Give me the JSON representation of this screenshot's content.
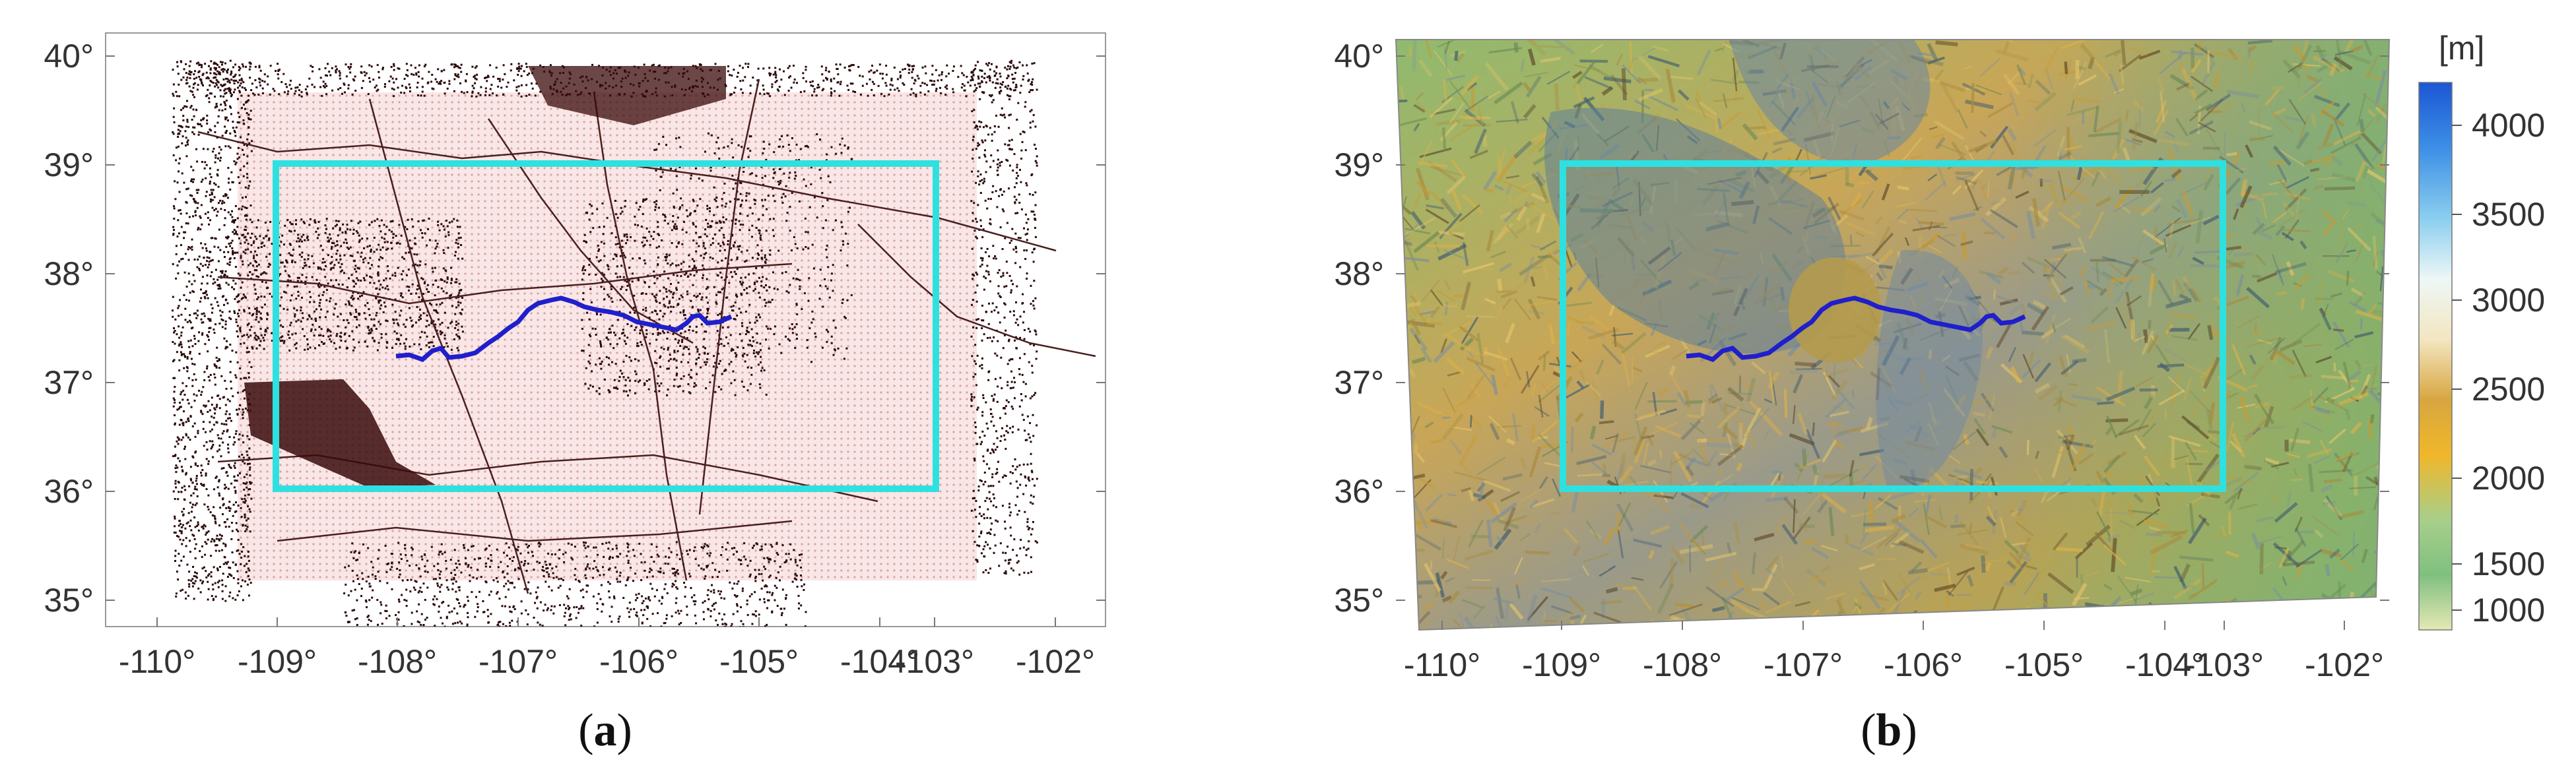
{
  "panels": [
    {
      "id": "a",
      "caption": {
        "open": "(",
        "letter": "a",
        "close": ")"
      },
      "y_ticks": [
        "40°",
        "39°",
        "38°",
        "37°",
        "36°",
        "35°"
      ],
      "x_ticks": [
        "-110°",
        "-109°",
        "-108°",
        "-107°",
        "-106°",
        "-105°",
        "-104°",
        "-103°",
        "-102°"
      ],
      "description_style": "scattered station points over a pink grid"
    },
    {
      "id": "b",
      "caption": {
        "open": "(",
        "letter": "b",
        "close": ")"
      },
      "y_ticks": [
        "40°",
        "39°",
        "38°",
        "37°",
        "36°",
        "35°"
      ],
      "x_ticks": [
        "-110°",
        "-109°",
        "-108°",
        "-107°",
        "-106°",
        "-105°",
        "-104°",
        "-103°",
        "-102°"
      ],
      "description_style": "shaded relief elevation map"
    }
  ],
  "colorbar": {
    "unit": "[m]",
    "ticks": [
      "4000",
      "3500",
      "3000",
      "2500",
      "2000",
      "1500",
      "1000"
    ],
    "colors": [
      "#1f5fd6",
      "#56a9e8",
      "#e9f4f0",
      "#f2e3b0",
      "#e8b64a",
      "#8fc486",
      "#dfe6b0"
    ]
  },
  "study_box": {
    "lon_min": -109,
    "lon_max": -103,
    "lat_min": 36,
    "lat_max": 39,
    "color": "#2fe0e0"
  },
  "river_color": "#1f1fcc"
}
